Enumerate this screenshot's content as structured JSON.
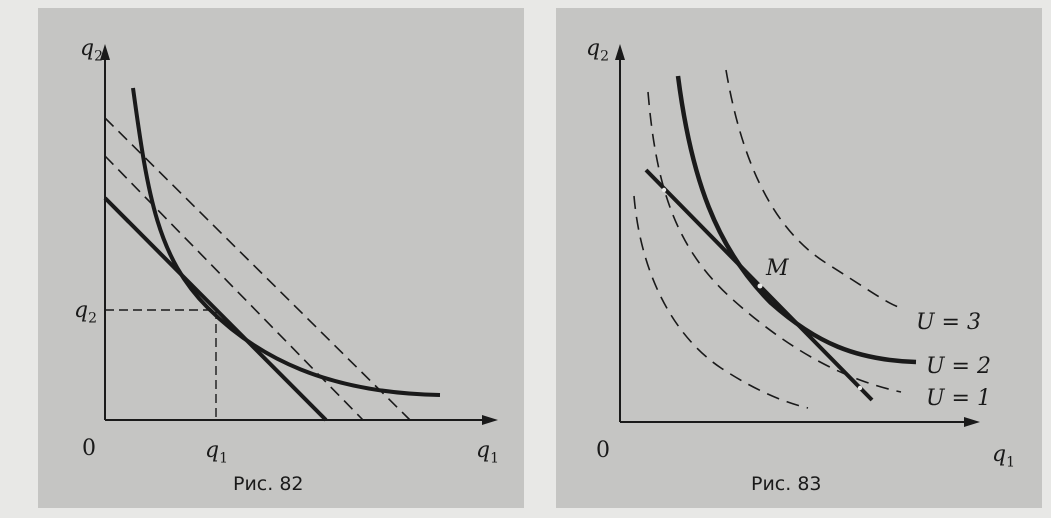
{
  "figures": [
    {
      "caption": "Рис. 82",
      "axis_y_var": "q",
      "axis_y_sub": "2",
      "axis_x_var": "q",
      "axis_x_sub": "1",
      "origin": "0",
      "tick_y_var": "q",
      "tick_y_sub": "2",
      "tick_x_var": "q",
      "tick_x_sub": "1"
    },
    {
      "caption": "Рис. 83",
      "axis_y_var": "q",
      "axis_y_sub": "2",
      "axis_x_var": "q",
      "axis_x_sub": "1",
      "origin": "0",
      "point": "M",
      "curve_labels": [
        "U = 3",
        "U = 2",
        "U = 1"
      ]
    }
  ],
  "colors": {
    "panel": "#c5c5c3",
    "ink": "#1a1a1a"
  }
}
